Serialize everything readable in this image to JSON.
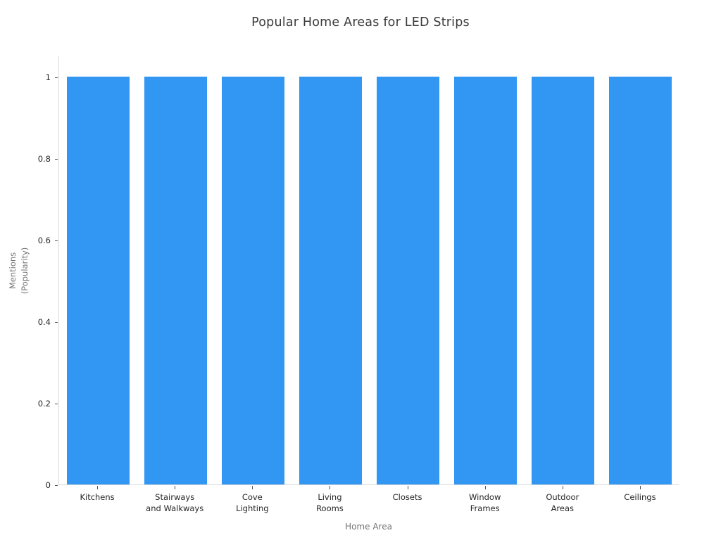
{
  "chart_data": {
    "type": "bar",
    "title": "Popular Home Areas for LED Strips",
    "xlabel": "Home Area",
    "ylabel": "Mentions\n(Popularity)",
    "categories": [
      "Kitchens",
      "Stairways and Walkways",
      "Cove Lighting",
      "Living Rooms",
      "Closets",
      "Window Frames",
      "Outdoor Areas",
      "Ceilings"
    ],
    "categories_display": [
      "Kitchens",
      "Stairways\nand Walkways",
      "Cove\nLighting",
      "Living\nRooms",
      "Closets",
      "Window\nFrames",
      "Outdoor\nAreas",
      "Ceilings"
    ],
    "values": [
      1,
      1,
      1,
      1,
      1,
      1,
      1,
      1
    ],
    "yticks": [
      0,
      0.2,
      0.4,
      0.6,
      0.8,
      1
    ],
    "ytick_labels": [
      "0",
      "0.2",
      "0.4",
      "0.6",
      "0.8",
      "1"
    ],
    "ylim": [
      0,
      1.05
    ],
    "grid": false,
    "legend": false,
    "bar_color": "#3296f3",
    "axis_line_color": "#d9d9d9",
    "tick_mark_color": "#555555",
    "tick_label_color": "#262626",
    "axis_title_color": "#767676",
    "title_color": "#3b3b3b"
  }
}
